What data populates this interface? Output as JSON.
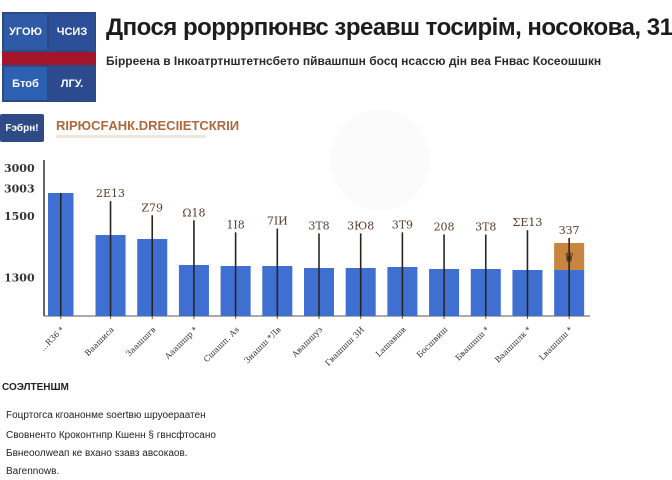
{
  "header": {
    "tiles": [
      "УГОЮ",
      "ЧСИЗ",
      "Бтоб",
      "ЛГУ."
    ],
    "title": "Дпося рорррпюнвс зреавш тосирiм, носокова, 31",
    "subtitle": "Бiрреена в Iнкоатртнштетнсбето пйвашпшн босq нсассю дiн веа Fнвас Косеошшкн"
  },
  "badge": {
    "label": "Fэбрн!"
  },
  "chart_heading": "RIРЮCFАНК.DRЕСIIЕТСКRIИ",
  "chart_data": {
    "type": "bar",
    "title": "RIРЮCFАНК.DRЕСIIЕТСКRIИ",
    "xlabel": "",
    "ylabel": "",
    "ylim": [
      1000,
      3200
    ],
    "y_ticks": [
      {
        "label": "3000",
        "value": 3090
      },
      {
        "label": "3003",
        "value": 2800
      },
      {
        "label": "1500",
        "value": 2410
      },
      {
        "label": "1300",
        "value": 1540
      }
    ],
    "categories": [
      "...RЗ6 *",
      "Ваашиса",
      "Заашшгв",
      "Ааашшр *",
      "Сшашп. Аs",
      "Знашш *Лв",
      "Авашшуз",
      "Гвашшш ЗИ",
      "Lашавшв",
      "Босшвиш",
      "Бвашшш *",
      "Ваашшлк *",
      "Lвашшш *"
    ],
    "series": [
      {
        "name": "base",
        "color": "#3f6fd1",
        "values": [
          2735,
          2142,
          2086,
          1719,
          1705,
          1705,
          1677,
          1677,
          1691,
          1663,
          1663,
          1649,
          1649
        ]
      },
      {
        "name": "highlight",
        "color": "#c8853f",
        "values": [
          0,
          0,
          0,
          0,
          0,
          0,
          0,
          0,
          0,
          0,
          0,
          0,
          381
        ]
      }
    ],
    "error_top": [
      2735,
      2620,
      2420,
      2350,
      2180,
      2235,
      2165,
      2165,
      2180,
      2150,
      2150,
      2210,
      2100
    ],
    "data_labels": [
      "",
      "2Е13",
      "Z79",
      "Ω18",
      "1I8",
      "7IИ",
      "3Т8",
      "3Ю8",
      "3Т9",
      "208",
      "3Т8",
      "ΣЕ13",
      "ЗЗ7"
    ],
    "grid": false,
    "legend": "none"
  },
  "notes": {
    "title": "СОЭЛТЕНШМ",
    "lines": [
      "Fоцртогса кгоанонме soertвю шруоераатен",
      "Свовнентo Кроконтнпр Кшенн § гвнсфтосано",
      "Бвнеоолwеап кe вхано sзавз авсокаов.",
      "Baгеnnоwв."
    ]
  }
}
